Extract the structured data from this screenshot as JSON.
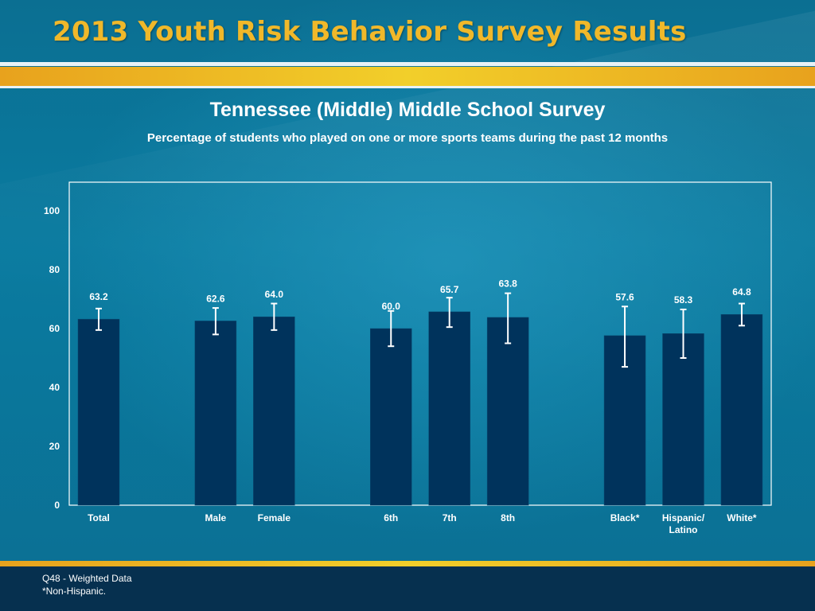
{
  "header": {
    "title": "2013 Youth Risk Behavior Survey Results"
  },
  "colors": {
    "bar": "#00335c",
    "title_gold": "#f0b82a",
    "background": "#0a7ba0"
  },
  "chart_data": {
    "type": "bar",
    "title": "Tennessee (Middle) Middle School Survey",
    "subtitle": "Percentage of students who played on one or more sports teams during the past 12 months",
    "xlabel": "",
    "ylabel": "",
    "ylim": [
      0,
      110
    ],
    "yticks": [
      0,
      20,
      40,
      60,
      80,
      100
    ],
    "grid": false,
    "categories": [
      {
        "label": [
          "Total"
        ],
        "value": 63.2,
        "value_label": "63.2",
        "ci": [
          59.5,
          66.8
        ],
        "slot": 0
      },
      {
        "label": [
          "Male"
        ],
        "value": 62.6,
        "value_label": "62.6",
        "ci": [
          58.0,
          67.0
        ],
        "slot": 2
      },
      {
        "label": [
          "Female"
        ],
        "value": 64.0,
        "value_label": "64.0",
        "ci": [
          59.5,
          68.5
        ],
        "slot": 3
      },
      {
        "label": [
          "6th"
        ],
        "value": 60.0,
        "value_label": "60.0",
        "ci": [
          54.0,
          66.0
        ],
        "slot": 5
      },
      {
        "label": [
          "7th"
        ],
        "value": 65.7,
        "value_label": "65.7",
        "ci": [
          60.5,
          70.5
        ],
        "slot": 6
      },
      {
        "label": [
          "8th"
        ],
        "value": 63.8,
        "value_label": "63.8",
        "ci": [
          55.0,
          72.0
        ],
        "slot": 7
      },
      {
        "label": [
          "Black*"
        ],
        "value": 57.6,
        "value_label": "57.6",
        "ci": [
          47.0,
          67.5
        ],
        "slot": 9
      },
      {
        "label": [
          "Hispanic/",
          "Latino"
        ],
        "value": 58.3,
        "value_label": "58.3",
        "ci": [
          50.0,
          66.5
        ],
        "slot": 10
      },
      {
        "label": [
          "White*"
        ],
        "value": 64.8,
        "value_label": "64.8",
        "ci": [
          61.0,
          68.5
        ],
        "slot": 11
      }
    ]
  },
  "footer": {
    "note_1": "Q48 - Weighted Data",
    "note_2": "*Non-Hispanic."
  }
}
